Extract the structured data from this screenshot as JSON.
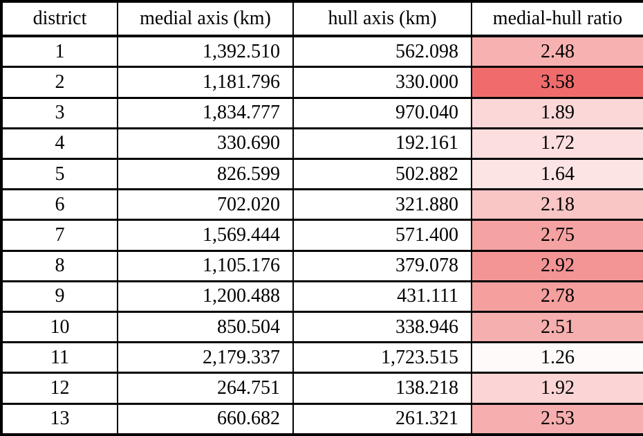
{
  "table": {
    "columns": [
      "district",
      "medial axis (km)",
      "hull axis (km)",
      "medial-hull ratio"
    ],
    "border_color": "#000000",
    "rows": [
      {
        "district": "1",
        "medial": "1,392.510",
        "hull": "562.098",
        "ratio": "2.48",
        "ratio_color": "#f7b1b1"
      },
      {
        "district": "2",
        "medial": "1,181.796",
        "hull": "330.000",
        "ratio": "3.58",
        "ratio_color": "#f06c6c"
      },
      {
        "district": "3",
        "medial": "1,834.777",
        "hull": "970.040",
        "ratio": "1.89",
        "ratio_color": "#fbd7d7"
      },
      {
        "district": "4",
        "medial": "330.690",
        "hull": "192.161",
        "ratio": "1.72",
        "ratio_color": "#fcdede"
      },
      {
        "district": "5",
        "medial": "826.599",
        "hull": "502.882",
        "ratio": "1.64",
        "ratio_color": "#fde4e4"
      },
      {
        "district": "6",
        "medial": "702.020",
        "hull": "321.880",
        "ratio": "2.18",
        "ratio_color": "#f9c5c5"
      },
      {
        "district": "7",
        "medial": "1,569.444",
        "hull": "571.400",
        "ratio": "2.75",
        "ratio_color": "#f5a2a2"
      },
      {
        "district": "8",
        "medial": "1,105.176",
        "hull": "379.078",
        "ratio": "2.92",
        "ratio_color": "#f49595"
      },
      {
        "district": "9",
        "medial": "1,200.488",
        "hull": "431.111",
        "ratio": "2.78",
        "ratio_color": "#f59f9f"
      },
      {
        "district": "10",
        "medial": "850.504",
        "hull": "338.946",
        "ratio": "2.51",
        "ratio_color": "#f6afaf"
      },
      {
        "district": "11",
        "medial": "2,179.337",
        "hull": "1,723.515",
        "ratio": "1.26",
        "ratio_color": "#fefafa"
      },
      {
        "district": "12",
        "medial": "264.751",
        "hull": "138.218",
        "ratio": "1.92",
        "ratio_color": "#fbd5d5"
      },
      {
        "district": "13",
        "medial": "660.682",
        "hull": "261.321",
        "ratio": "2.53",
        "ratio_color": "#f6aeae"
      }
    ]
  },
  "chart_data": {
    "type": "table",
    "columns": [
      "district",
      "medial axis (km)",
      "hull axis (km)",
      "medial-hull ratio"
    ],
    "rows": [
      [
        1,
        1392.51,
        562.098,
        2.48
      ],
      [
        2,
        1181.796,
        330.0,
        3.58
      ],
      [
        3,
        1834.777,
        970.04,
        1.89
      ],
      [
        4,
        330.69,
        192.161,
        1.72
      ],
      [
        5,
        826.599,
        502.882,
        1.64
      ],
      [
        6,
        702.02,
        321.88,
        2.18
      ],
      [
        7,
        1569.444,
        571.4,
        2.75
      ],
      [
        8,
        1105.176,
        379.078,
        2.92
      ],
      [
        9,
        1200.488,
        431.111,
        2.78
      ],
      [
        10,
        850.504,
        338.946,
        2.51
      ],
      [
        11,
        2179.337,
        1723.515,
        1.26
      ],
      [
        12,
        264.751,
        138.218,
        1.92
      ],
      [
        13,
        660.682,
        261.321,
        2.53
      ]
    ],
    "heatmap_column": "medial-hull ratio",
    "heatmap_scale": {
      "min_value": 1.26,
      "max_value": 3.58,
      "min_color": "#ffffff",
      "max_color": "#f06c6c"
    }
  }
}
